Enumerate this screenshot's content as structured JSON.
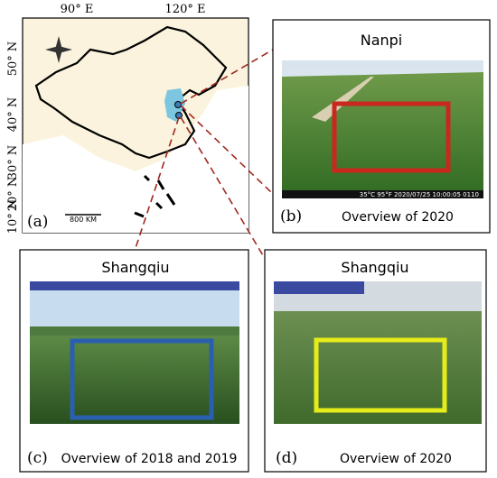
{
  "map": {
    "lon_labels": [
      "90° E",
      "120° E"
    ],
    "lat_labels": [
      "50° N",
      "40° N",
      "30° N",
      "20° N",
      "10° N"
    ],
    "panel_label": "(a)",
    "scale_label": "800 KM"
  },
  "panels": [
    {
      "title": "Nanpi",
      "panel_label": "(b)",
      "caption": "Overview of 2020",
      "stamp": "35°C 95°F 2020/07/25 10:00:05 0110"
    },
    {
      "title": "Shangqiu",
      "panel_label": "(c)",
      "caption": "Overview of 2018 and 2019"
    },
    {
      "title": "Shangqiu",
      "panel_label": "(d)",
      "caption": "Overview of 2020"
    }
  ]
}
